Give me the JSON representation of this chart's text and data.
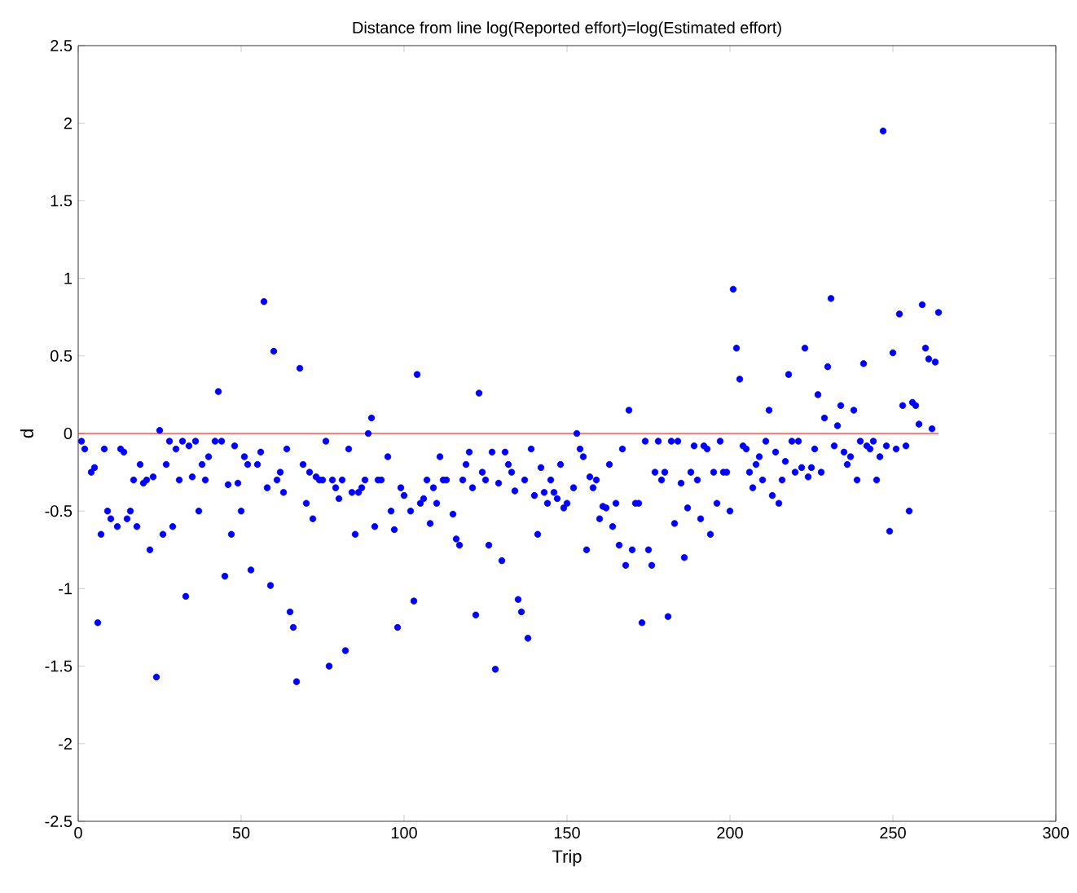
{
  "chart_data": {
    "type": "scatter",
    "title": "Distance from line log(Reported effort)=log(Estimated effort)",
    "xlabel": "Trip",
    "ylabel": "d",
    "xlim": [
      0,
      300
    ],
    "xticks": [
      0,
      50,
      100,
      150,
      200,
      250,
      300
    ],
    "ylim": [
      -2.5,
      2.5
    ],
    "yticks": [
      -2.5,
      -2,
      -1.5,
      -1,
      -0.5,
      0,
      0.5,
      1,
      1.5,
      2,
      2.5
    ],
    "grid": false,
    "series": [
      {
        "color": "#0000ff",
        "marker": "circle",
        "x": [
          1,
          2,
          4,
          5,
          6,
          7,
          8,
          9,
          10,
          12,
          13,
          14,
          15,
          16,
          17,
          18,
          19,
          20,
          21,
          22,
          23,
          24,
          25,
          26,
          27,
          28,
          29,
          30,
          31,
          32,
          33,
          34,
          35,
          36,
          37,
          38,
          39,
          40,
          42,
          43,
          44,
          45,
          46,
          47,
          48,
          49,
          50,
          51,
          52,
          53,
          55,
          56,
          57,
          58,
          59,
          60,
          61,
          62,
          63,
          64,
          65,
          66,
          67,
          68,
          69,
          70,
          71,
          72,
          73,
          74,
          75,
          76,
          77,
          78,
          79,
          80,
          81,
          82,
          83,
          84,
          85,
          86,
          87,
          88,
          89,
          90,
          91,
          92,
          93,
          95,
          96,
          97,
          98,
          99,
          100,
          102,
          103,
          104,
          105,
          106,
          107,
          108,
          109,
          110,
          111,
          112,
          113,
          115,
          116,
          117,
          118,
          119,
          120,
          121,
          122,
          123,
          124,
          125,
          126,
          127,
          128,
          129,
          130,
          131,
          132,
          133,
          134,
          135,
          136,
          137,
          138,
          139,
          140,
          141,
          142,
          143,
          144,
          145,
          146,
          147,
          148,
          149,
          150,
          152,
          153,
          154,
          155,
          156,
          157,
          158,
          159,
          160,
          161,
          162,
          163,
          164,
          165,
          166,
          167,
          168,
          169,
          170,
          171,
          172,
          173,
          174,
          175,
          176,
          177,
          178,
          179,
          180,
          181,
          182,
          183,
          184,
          185,
          186,
          187,
          188,
          189,
          190,
          191,
          192,
          193,
          194,
          195,
          196,
          197,
          198,
          199,
          200,
          201,
          202,
          203,
          204,
          205,
          206,
          207,
          208,
          209,
          210,
          211,
          212,
          213,
          214,
          215,
          216,
          217,
          218,
          219,
          220,
          221,
          222,
          223,
          224,
          225,
          226,
          227,
          228,
          229,
          230,
          231,
          232,
          233,
          234,
          235,
          236,
          237,
          238,
          239,
          240,
          241,
          242,
          243,
          244,
          245,
          246,
          247,
          248,
          249,
          250,
          251,
          252,
          253,
          254,
          255,
          256,
          257,
          258,
          259,
          260,
          261,
          262,
          263,
          264
        ],
        "values": [
          -0.05,
          -0.1,
          -0.25,
          -0.22,
          -1.22,
          -0.65,
          -0.1,
          -0.5,
          -0.55,
          -0.6,
          -0.1,
          -0.12,
          -0.55,
          -0.5,
          -0.3,
          -0.6,
          -0.2,
          -0.32,
          -0.3,
          -0.75,
          -0.28,
          -1.57,
          0.02,
          -0.65,
          -0.2,
          -0.05,
          -0.6,
          -0.1,
          -0.3,
          -0.05,
          -1.05,
          -0.08,
          -0.28,
          -0.05,
          -0.5,
          -0.2,
          -0.3,
          -0.15,
          -0.05,
          0.27,
          -0.05,
          -0.92,
          -0.33,
          -0.65,
          -0.08,
          -0.32,
          -0.5,
          -0.15,
          -0.2,
          -0.88,
          -0.2,
          -0.12,
          0.85,
          -0.35,
          -0.98,
          0.53,
          -0.3,
          -0.25,
          -0.38,
          -0.1,
          -1.15,
          -1.25,
          -1.6,
          0.42,
          -0.2,
          -0.45,
          -0.25,
          -0.55,
          -0.28,
          -0.3,
          -0.3,
          -0.05,
          -1.5,
          -0.3,
          -0.35,
          -0.42,
          -0.3,
          -1.4,
          -0.1,
          -0.38,
          -0.65,
          -0.38,
          -0.35,
          -0.3,
          0.0,
          0.1,
          -0.6,
          -0.3,
          -0.3,
          -0.15,
          -0.5,
          -0.62,
          -1.25,
          -0.35,
          -0.4,
          -0.5,
          -1.08,
          0.38,
          -0.45,
          -0.42,
          -0.3,
          -0.58,
          -0.35,
          -0.45,
          -0.15,
          -0.3,
          -0.3,
          -0.52,
          -0.68,
          -0.72,
          -0.3,
          -0.2,
          -0.12,
          -0.35,
          -1.17,
          0.26,
          -0.25,
          -0.3,
          -0.72,
          -0.12,
          -1.52,
          -0.32,
          -0.82,
          -0.12,
          -0.2,
          -0.25,
          -0.37,
          -1.07,
          -1.15,
          -0.3,
          -1.32,
          -0.1,
          -0.4,
          -0.65,
          -0.22,
          -0.38,
          -0.45,
          -0.3,
          -0.38,
          -0.42,
          -0.2,
          -0.48,
          -0.45,
          -0.35,
          0.0,
          -0.1,
          -0.15,
          -0.75,
          -0.28,
          -0.35,
          -0.3,
          -0.55,
          -0.47,
          -0.48,
          -0.2,
          -0.6,
          -0.45,
          -0.72,
          -0.1,
          -0.85,
          0.15,
          -0.75,
          -0.45,
          -0.45,
          -1.22,
          -0.05,
          -0.75,
          -0.85,
          -0.25,
          -0.05,
          -0.3,
          -0.25,
          -1.18,
          -0.05,
          -0.58,
          -0.05,
          -0.32,
          -0.8,
          -0.48,
          -0.25,
          -0.08,
          -0.3,
          -0.55,
          -0.08,
          -0.1,
          -0.65,
          -0.25,
          -0.45,
          -0.05,
          -0.25,
          -0.25,
          -0.5,
          0.93,
          0.55,
          0.35,
          -0.08,
          -0.1,
          -0.25,
          -0.35,
          -0.2,
          -0.15,
          -0.3,
          -0.05,
          0.15,
          -0.4,
          -0.12,
          -0.45,
          -0.3,
          -0.18,
          0.38,
          -0.05,
          -0.25,
          -0.05,
          -0.22,
          0.55,
          -0.28,
          -0.22,
          -0.1,
          0.25,
          -0.25,
          0.1,
          0.43,
          0.87,
          -0.08,
          0.05,
          0.18,
          -0.12,
          -0.2,
          -0.15,
          0.15,
          -0.3,
          -0.05,
          0.45,
          -0.08,
          -0.1,
          -0.05,
          -0.3,
          -0.15,
          1.95,
          -0.08,
          -0.63,
          0.52,
          -0.1,
          0.77,
          0.18,
          -0.08,
          -0.5,
          0.2,
          0.18,
          0.06,
          0.83,
          0.55,
          0.48,
          0.03,
          0.46,
          0.78
        ]
      },
      {
        "type": "line",
        "marker": "none",
        "color": "#ff0000",
        "x": [
          0,
          264
        ],
        "values": [
          0,
          0
        ]
      }
    ]
  }
}
